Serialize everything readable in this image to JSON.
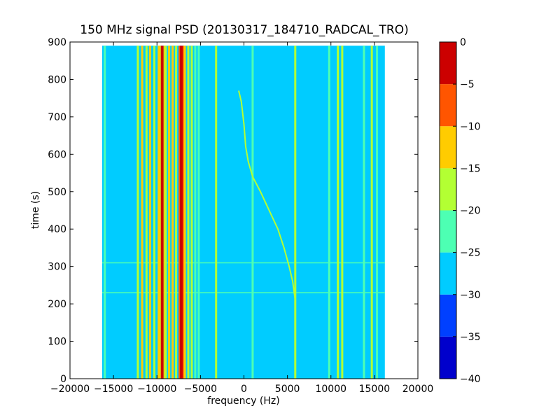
{
  "chart_data": {
    "type": "heatmap",
    "title": "150 MHz signal PSD (20130317_184710_RADCAL_TRO)",
    "xlabel": "frequency (Hz)",
    "ylabel": "time (s)",
    "xlim": [
      -20000,
      20000
    ],
    "ylim": [
      0,
      900
    ],
    "x_ticks": [
      "−20000",
      "−15000",
      "−10000",
      "−5000",
      "0",
      "5000",
      "10000",
      "15000",
      "20000"
    ],
    "y_ticks": [
      "0",
      "100",
      "200",
      "300",
      "400",
      "500",
      "600",
      "700",
      "800",
      "900"
    ],
    "data_extent": {
      "freq": [
        -16300,
        16200
      ],
      "time": [
        0,
        890
      ]
    },
    "colorbar": {
      "range": [
        -40,
        0
      ],
      "levels": [
        -40,
        -35,
        -30,
        -25,
        -20,
        -15,
        -10,
        -5,
        0
      ],
      "tick_labels": [
        "0",
        "−5",
        "−10",
        "−15",
        "−20",
        "−25",
        "−30",
        "−35",
        "−40"
      ],
      "colors": [
        "#0000cc",
        "#0040ff",
        "#00ccff",
        "#4dffb3",
        "#b3ff33",
        "#ffcc00",
        "#ff5500",
        "#cc0000"
      ]
    },
    "background_level": [
      -30,
      -25
    ],
    "vertical_lines": [
      {
        "freq": -16000,
        "level": -22
      },
      {
        "freq": -12200,
        "level": -17
      },
      {
        "freq": -11700,
        "level": -12
      },
      {
        "freq": -11200,
        "level": -20
      },
      {
        "freq": -10800,
        "level": -15
      },
      {
        "freq": -10300,
        "level": -17
      },
      {
        "freq": -9800,
        "level": -12
      },
      {
        "freq": -9400,
        "level": -3
      },
      {
        "freq": -9000,
        "level": -17
      },
      {
        "freq": -8600,
        "level": -15
      },
      {
        "freq": -8200,
        "level": -12
      },
      {
        "freq": -7800,
        "level": -20
      },
      {
        "freq": -7200,
        "level": -2
      },
      {
        "freq": -6800,
        "level": -12
      },
      {
        "freq": -6400,
        "level": -20
      },
      {
        "freq": -6000,
        "level": -20
      },
      {
        "freq": -5600,
        "level": -22
      },
      {
        "freq": -5200,
        "level": -22
      },
      {
        "freq": -3200,
        "level": -17
      },
      {
        "freq": 1000,
        "level": -22
      },
      {
        "freq": 5900,
        "level": -20
      },
      {
        "freq": 9800,
        "level": -22
      },
      {
        "freq": 10800,
        "level": -17
      },
      {
        "freq": 11300,
        "level": -20
      },
      {
        "freq": 13800,
        "level": -22
      },
      {
        "freq": 14700,
        "level": -20
      },
      {
        "freq": 15300,
        "level": -22
      }
    ],
    "sweep_signal": {
      "level": -18,
      "points": [
        {
          "time": 210,
          "freq": 5900
        },
        {
          "time": 260,
          "freq": 5600
        },
        {
          "time": 300,
          "freq": 5200
        },
        {
          "time": 350,
          "freq": 4600
        },
        {
          "time": 400,
          "freq": 3900
        },
        {
          "time": 450,
          "freq": 2900
        },
        {
          "time": 500,
          "freq": 1900
        },
        {
          "time": 540,
          "freq": 1000
        },
        {
          "time": 580,
          "freq": 500
        },
        {
          "time": 620,
          "freq": 200
        },
        {
          "time": 680,
          "freq": 0
        },
        {
          "time": 740,
          "freq": -300
        },
        {
          "time": 770,
          "freq": -600
        }
      ]
    },
    "horizontal_streaks": [
      {
        "time": 310,
        "level": -25
      },
      {
        "time": 230,
        "level": -25
      }
    ],
    "grid": false,
    "legend": "colorbar right"
  }
}
